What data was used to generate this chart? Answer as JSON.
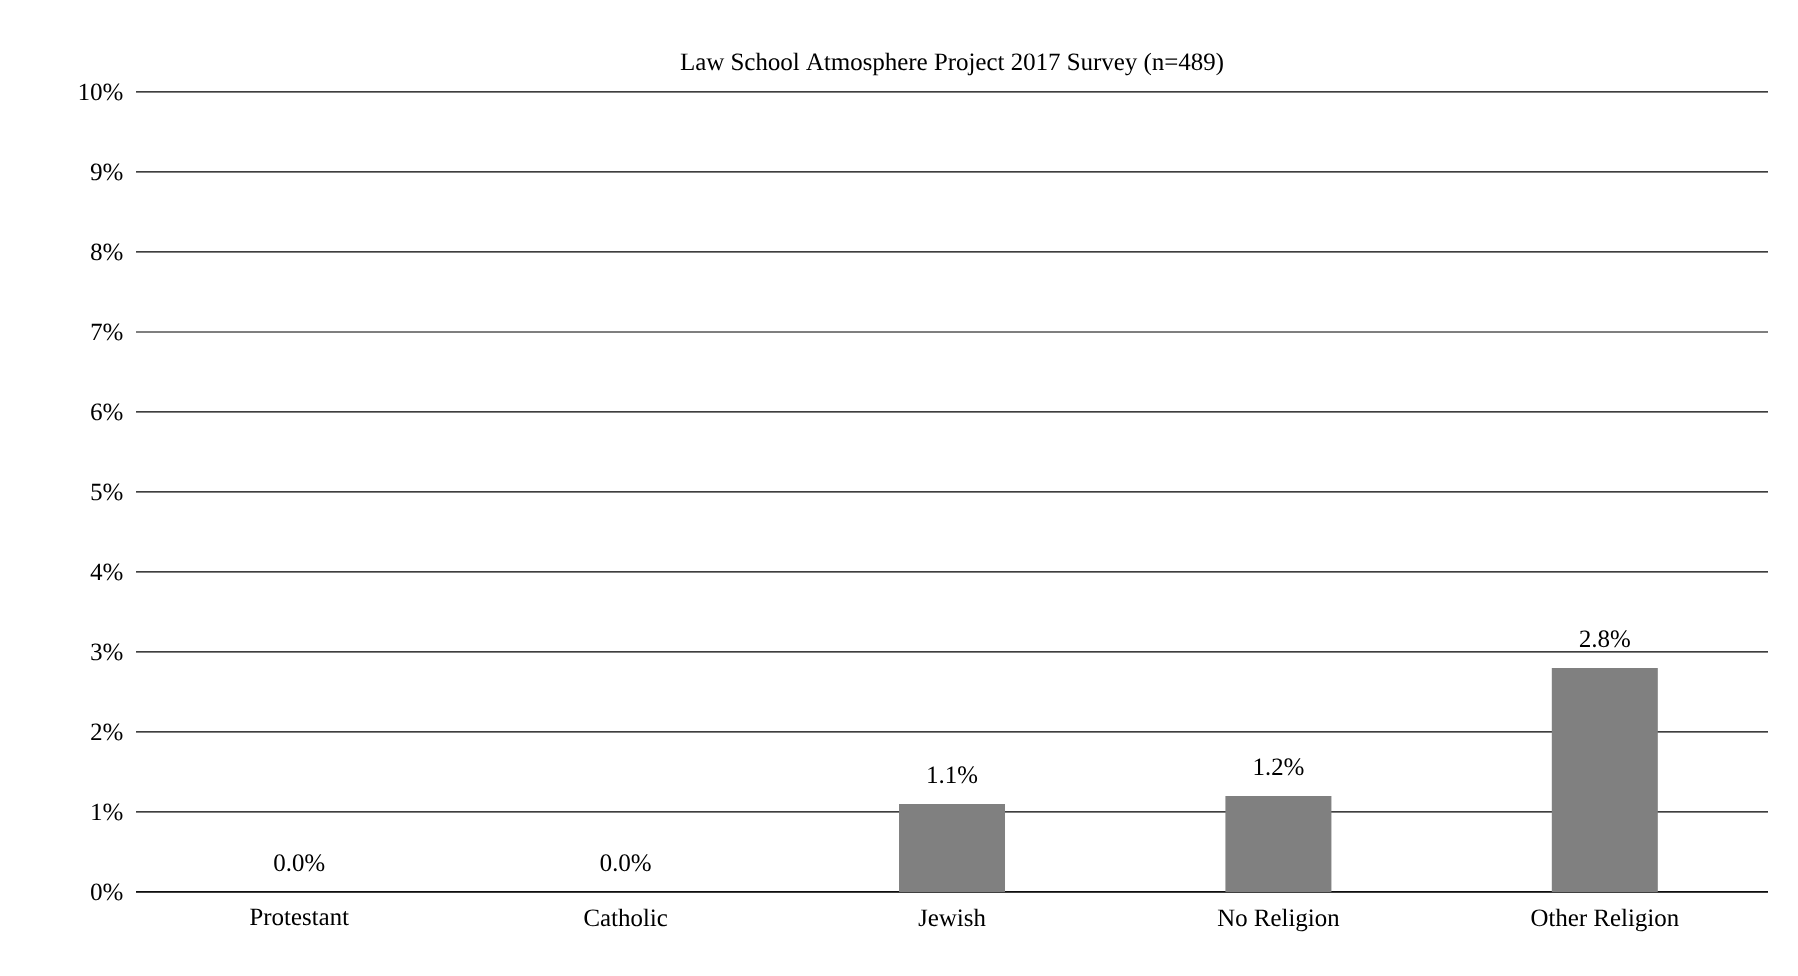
{
  "chart_data": {
    "type": "bar",
    "title": "Law School Atmosphere Project 2017 Survey (n=489)",
    "categories": [
      "Protestant",
      "Catholic",
      "Jewish",
      "No Religion",
      "Other Religion"
    ],
    "values": [
      0.0,
      0.0,
      1.1,
      1.2,
      2.8
    ],
    "value_labels": [
      "0.0%",
      "0.0%",
      "1.1%",
      "1.2%",
      "2.8%"
    ],
    "color": "#808080",
    "ylim": [
      0,
      10
    ],
    "yticks": [
      {
        "value": 0,
        "label": "0%"
      },
      {
        "value": 1,
        "label": "1%"
      },
      {
        "value": 2,
        "label": "2%"
      },
      {
        "value": 3,
        "label": "3%"
      },
      {
        "value": 4,
        "label": "4%"
      },
      {
        "value": 5,
        "label": "5%"
      },
      {
        "value": 6,
        "label": "6%"
      },
      {
        "value": 7,
        "label": "7%"
      },
      {
        "value": 8,
        "label": "8%"
      },
      {
        "value": 9,
        "label": "9%"
      },
      {
        "value": 10,
        "label": "10%"
      }
    ],
    "grid": "y"
  }
}
